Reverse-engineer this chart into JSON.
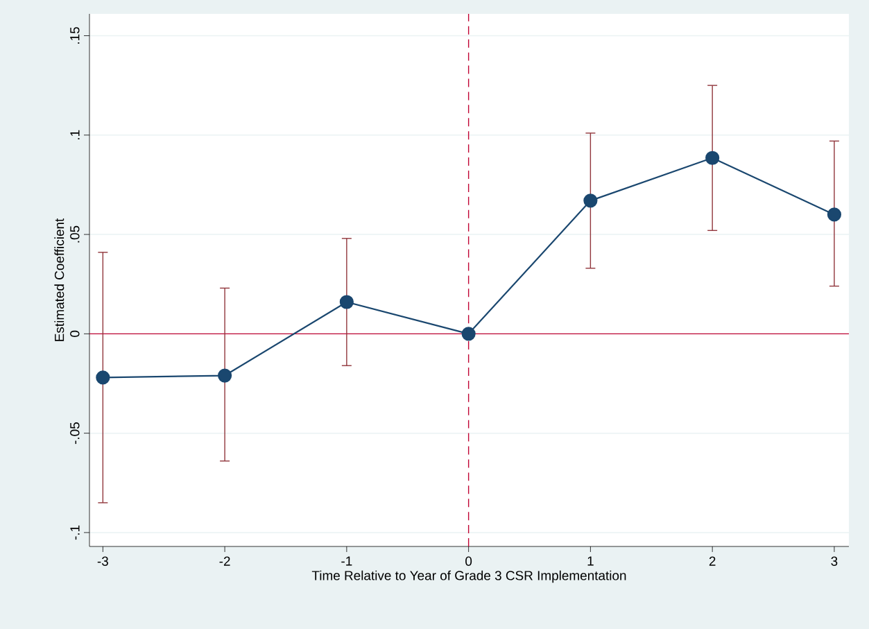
{
  "chart_data": {
    "type": "line",
    "xlabel": "Time Relative to Year of Grade 3 CSR Implementation",
    "ylabel": "Estimated Coefficient",
    "x": [
      -3,
      -2,
      -1,
      0,
      1,
      2,
      3
    ],
    "series": [
      {
        "color": "#1a476f",
        "values": [
          -0.022,
          -0.021,
          0.016,
          0,
          0.067,
          0.0885,
          0.06
        ],
        "errors": [
          [
            -0.085,
            0.041
          ],
          [
            -0.064,
            0.023
          ],
          [
            -0.016,
            0.048
          ],
          null,
          [
            0.033,
            0.101
          ],
          [
            0.052,
            0.125
          ],
          [
            0.024,
            0.097
          ]
        ]
      }
    ],
    "xlim": [
      -3.11,
      3.12
    ],
    "ylim": [
      -0.107,
      0.161
    ],
    "xticks": [
      -3,
      -2,
      -1,
      0,
      1,
      2,
      3
    ],
    "yticks": [
      {
        "value": -0.1,
        "label": "-.1"
      },
      {
        "value": -0.05,
        "label": "-.05"
      },
      0,
      {
        "value": 0.05,
        "label": ".05"
      },
      {
        "value": 0.1,
        "label": ".1"
      },
      {
        "value": 0.15,
        "label": ".15"
      }
    ],
    "grid": "y",
    "marker": "circle",
    "ref_lines": [
      {
        "axis": "y",
        "value": 0,
        "color": "#c10534",
        "line_style": "solid"
      },
      {
        "axis": "x",
        "value": 0,
        "color": "#c10534",
        "line_style": "dashed"
      }
    ]
  }
}
